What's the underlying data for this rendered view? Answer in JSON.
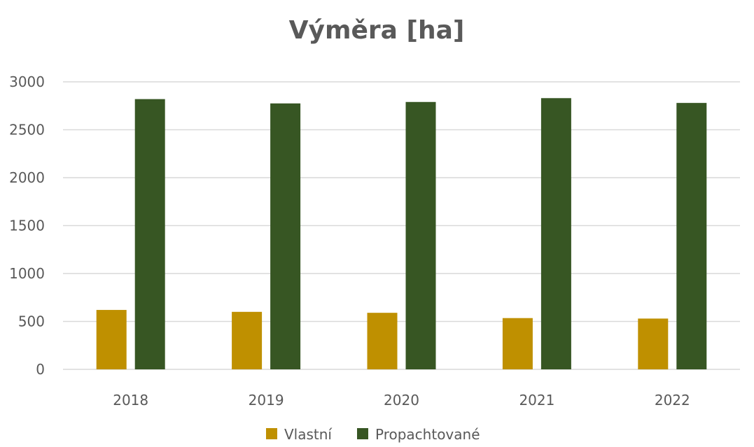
{
  "chart_data": {
    "type": "bar",
    "title": "Výměra [ha]",
    "xlabel": "",
    "ylabel": "",
    "categories": [
      "2018",
      "2019",
      "2020",
      "2021",
      "2022"
    ],
    "series": [
      {
        "name": "Vlastní",
        "color": "#bf9000",
        "values": [
          620,
          600,
          590,
          535,
          530
        ]
      },
      {
        "name": "Propachtované",
        "color": "#375623",
        "values": [
          2820,
          2775,
          2790,
          2830,
          2780
        ]
      }
    ],
    "ylim": [
      0,
      3000
    ],
    "yticks": [
      "0",
      "500",
      "1000",
      "1500",
      "2000",
      "2500",
      "3000"
    ],
    "grid": true,
    "legend_position": "bottom"
  }
}
